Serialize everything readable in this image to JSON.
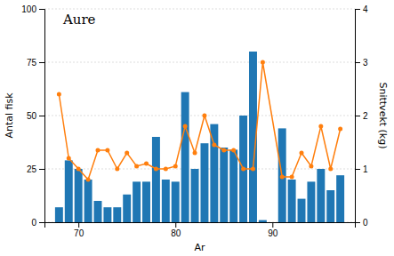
{
  "chart_data": {
    "type": "bar",
    "title": "Aure",
    "x_label": "Ar",
    "y_label": "Antal fisk",
    "y2_label": "Snittvekt (kg)",
    "x": [
      68,
      69,
      70,
      71,
      72,
      73,
      74,
      75,
      76,
      77,
      78,
      79,
      80,
      81,
      82,
      83,
      84,
      85,
      86,
      87,
      88,
      89,
      91,
      92,
      93,
      94,
      95,
      96,
      97
    ],
    "xlim": [
      66.5,
      98.5
    ],
    "xticks": [
      70,
      80,
      90
    ],
    "ylim": [
      0,
      100
    ],
    "yticks": [
      0,
      25,
      50,
      75,
      100
    ],
    "y2lim": [
      0,
      4
    ],
    "y2ticks": [
      0,
      1,
      2,
      3,
      4
    ],
    "grid": true,
    "series": [
      {
        "type": "bar",
        "values": [
          7,
          29,
          25,
          20,
          10,
          7,
          7,
          13,
          19,
          19,
          40,
          20,
          19,
          61,
          25,
          37,
          46,
          35,
          34,
          50,
          80,
          1,
          44,
          20,
          11,
          19,
          25,
          15,
          22
        ]
      },
      {
        "type": "line",
        "axis": "y2",
        "marker": "circle",
        "values": [
          2.4,
          1.2,
          1.0,
          0.8,
          1.35,
          1.35,
          1.0,
          1.3,
          1.05,
          1.1,
          1.0,
          1.0,
          1.05,
          1.8,
          1.3,
          2.0,
          1.45,
          1.35,
          1.35,
          1.0,
          1.0,
          3.0,
          0.85,
          0.85,
          1.3,
          1.05,
          1.8,
          1.0,
          1.75
        ]
      }
    ]
  }
}
